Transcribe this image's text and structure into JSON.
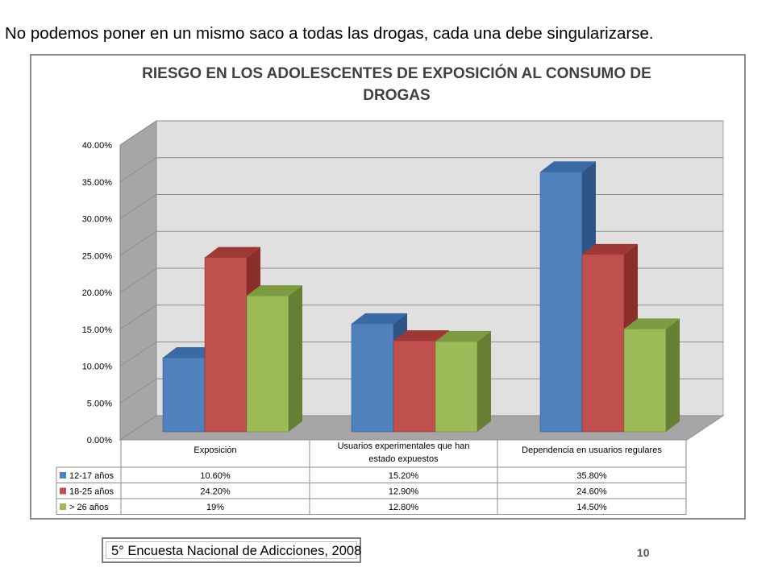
{
  "slide": {
    "title": "No podemos poner en un mismo saco a todas las drogas, cada una debe singularizarse.",
    "source": "5° Encuesta Nacional de Adicciones, 2008",
    "page_number": "10"
  },
  "chart_data": {
    "type": "bar",
    "three_d": true,
    "title_lines": [
      "RIESGO EN LOS ADOLESCENTES DE EXPOSICIÓN AL CONSUMO DE",
      "DROGAS"
    ],
    "categories": [
      [
        "Exposición"
      ],
      [
        "Usuarios experimentales que han",
        "estado expuestos"
      ],
      [
        "Dependencia en usuarios regulares"
      ]
    ],
    "series": [
      {
        "name": "12-17 años",
        "values": [
          10.6,
          15.2,
          35.8
        ],
        "labels": [
          "10.60%",
          "15.20%",
          "35.80%"
        ],
        "color": "#4f81bd",
        "top": "#3a6aa4",
        "side": "#2f5486"
      },
      {
        "name": "18-25 años",
        "values": [
          24.2,
          12.9,
          24.6
        ],
        "labels": [
          "24.20%",
          "12.90%",
          "24.60%"
        ],
        "color": "#c0504d",
        "top": "#9e3835",
        "side": "#8a2d2b"
      },
      {
        "name": "> 26 años",
        "values": [
          19,
          12.8,
          14.5
        ],
        "labels": [
          "19%",
          "12.80%",
          "14.50%"
        ],
        "color": "#9bbb59",
        "top": "#7d9b40",
        "side": "#667f33"
      }
    ],
    "y_ticks": [
      "0.00%",
      "5.00%",
      "10.00%",
      "15.00%",
      "20.00%",
      "25.00%",
      "30.00%",
      "35.00%",
      "40.00%"
    ],
    "ylim": [
      0,
      40
    ],
    "grid": true,
    "legend": "data-table"
  }
}
